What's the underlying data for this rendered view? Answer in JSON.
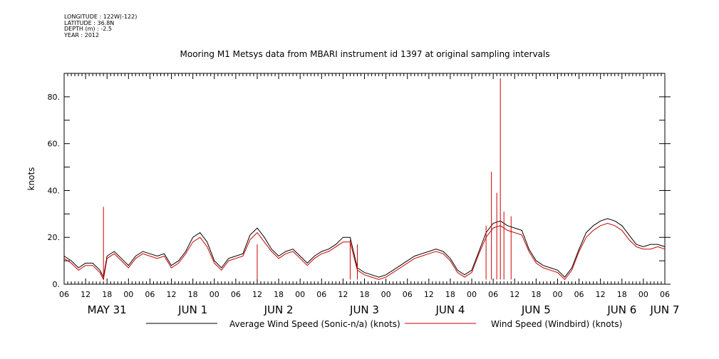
{
  "header": {
    "longitude": "LONGITUDE : 122W(-122)",
    "latitude": "LATITUDE : 36.8N",
    "depth": "DEPTH (m) : -2.5",
    "year": "YEAR : 2012"
  },
  "chart_data": {
    "type": "line",
    "title": "Mooring M1 Metsys data from MBARI instrument id 1397 at original sampling intervals",
    "ylabel": "knots",
    "xlabel": "",
    "ylim": [
      0,
      90
    ],
    "yticks": [
      0,
      20,
      40,
      60,
      80
    ],
    "ytick_labels": [
      "0.",
      "20.",
      "40.",
      "60.",
      "80."
    ],
    "xlim_hours": [
      0,
      168
    ],
    "hour_ticks": [
      "06",
      "12",
      "18",
      "00",
      "06",
      "12",
      "18",
      "00",
      "06",
      "12",
      "18",
      "00",
      "06",
      "12",
      "18",
      "00",
      "06",
      "12",
      "18",
      "00",
      "06",
      "12",
      "18",
      "00",
      "06",
      "12",
      "18",
      "00",
      "06"
    ],
    "day_labels": [
      {
        "label": "MAY 31",
        "hour": 12
      },
      {
        "label": "JUN  1",
        "hour": 36
      },
      {
        "label": "JUN  2",
        "hour": 60
      },
      {
        "label": "JUN  3",
        "hour": 84
      },
      {
        "label": "JUN  4",
        "hour": 108
      },
      {
        "label": "JUN  5",
        "hour": 132
      },
      {
        "label": "JUN  6",
        "hour": 156
      },
      {
        "label": "JUN  7",
        "hour": 168
      }
    ],
    "grid": false,
    "legend_position": "bottom",
    "series": [
      {
        "name": "Average Wind Speed (Sonic-n/a) (knots)",
        "color": "#000000",
        "x": [
          0,
          2,
          4,
          6,
          8,
          10,
          11,
          12,
          14,
          16,
          18,
          20,
          22,
          24,
          26,
          28,
          30,
          32,
          34,
          36,
          38,
          40,
          42,
          44,
          46,
          48,
          50,
          52,
          54,
          56,
          58,
          60,
          62,
          64,
          66,
          68,
          70,
          72,
          74,
          76,
          78,
          80,
          82,
          84,
          86,
          88,
          90,
          92,
          94,
          96,
          98,
          100,
          102,
          104,
          106,
          108,
          110,
          112,
          114,
          116,
          118,
          120,
          122,
          124,
          126,
          128,
          130,
          132,
          134,
          136,
          138,
          140,
          142,
          144,
          146,
          148,
          150,
          152,
          154,
          156,
          158,
          160,
          162,
          164,
          166,
          168
        ],
        "values": [
          12,
          10,
          7,
          9,
          9,
          6,
          3,
          12,
          14,
          11,
          8,
          12,
          14,
          13,
          12,
          13,
          8,
          10,
          14,
          20,
          22,
          18,
          10,
          7,
          11,
          12,
          13,
          21,
          24,
          20,
          15,
          12,
          14,
          15,
          12,
          9,
          12,
          14,
          15,
          17,
          20,
          20,
          7,
          5,
          4,
          3,
          4,
          6,
          8,
          10,
          12,
          13,
          14,
          15,
          14,
          11,
          6,
          4,
          6,
          14,
          22,
          26,
          27,
          25,
          24,
          23,
          15,
          10,
          8,
          7,
          6,
          3,
          7,
          15,
          22,
          25,
          27,
          28,
          27,
          25,
          21,
          17,
          16,
          17,
          17,
          16
        ]
      },
      {
        "name": "Wind Speed (Windbird) (knots)",
        "color": "#cc0000",
        "x": [
          0,
          2,
          4,
          6,
          8,
          10,
          11,
          12,
          14,
          16,
          18,
          20,
          22,
          24,
          26,
          28,
          30,
          32,
          34,
          36,
          38,
          40,
          42,
          44,
          46,
          48,
          50,
          52,
          54,
          56,
          58,
          60,
          62,
          64,
          66,
          68,
          70,
          72,
          74,
          76,
          78,
          80,
          82,
          84,
          86,
          88,
          90,
          92,
          94,
          96,
          98,
          100,
          102,
          104,
          106,
          108,
          110,
          112,
          114,
          116,
          118,
          120,
          122,
          124,
          126,
          128,
          130,
          132,
          134,
          136,
          138,
          140,
          142,
          144,
          146,
          148,
          150,
          152,
          154,
          156,
          158,
          160,
          162,
          164,
          166,
          168
        ],
        "values": [
          11,
          9,
          6,
          8,
          8,
          5,
          2,
          11,
          13,
          10,
          7,
          11,
          13,
          12,
          11,
          12,
          7,
          9,
          13,
          18,
          20,
          16,
          9,
          6,
          10,
          11,
          12,
          19,
          22,
          18,
          14,
          11,
          13,
          14,
          11,
          8,
          11,
          13,
          14,
          16,
          18,
          18,
          6,
          4,
          3,
          2,
          3,
          5,
          7,
          9,
          11,
          12,
          13,
          14,
          13,
          10,
          5,
          3,
          5,
          13,
          20,
          24,
          25,
          23,
          22,
          21,
          14,
          9,
          7,
          6,
          5,
          2,
          6,
          14,
          20,
          23,
          25,
          26,
          25,
          23,
          19,
          16,
          15,
          15,
          16,
          15
        ],
        "spikes": [
          {
            "x": 11,
            "value": 33
          },
          {
            "x": 54,
            "value": 17
          },
          {
            "x": 80,
            "value": 19
          },
          {
            "x": 82,
            "value": 17
          },
          {
            "x": 118,
            "value": 25
          },
          {
            "x": 119.5,
            "value": 48
          },
          {
            "x": 121,
            "value": 39
          },
          {
            "x": 122,
            "value": 88
          },
          {
            "x": 123,
            "value": 31
          },
          {
            "x": 125,
            "value": 29
          }
        ]
      }
    ]
  }
}
